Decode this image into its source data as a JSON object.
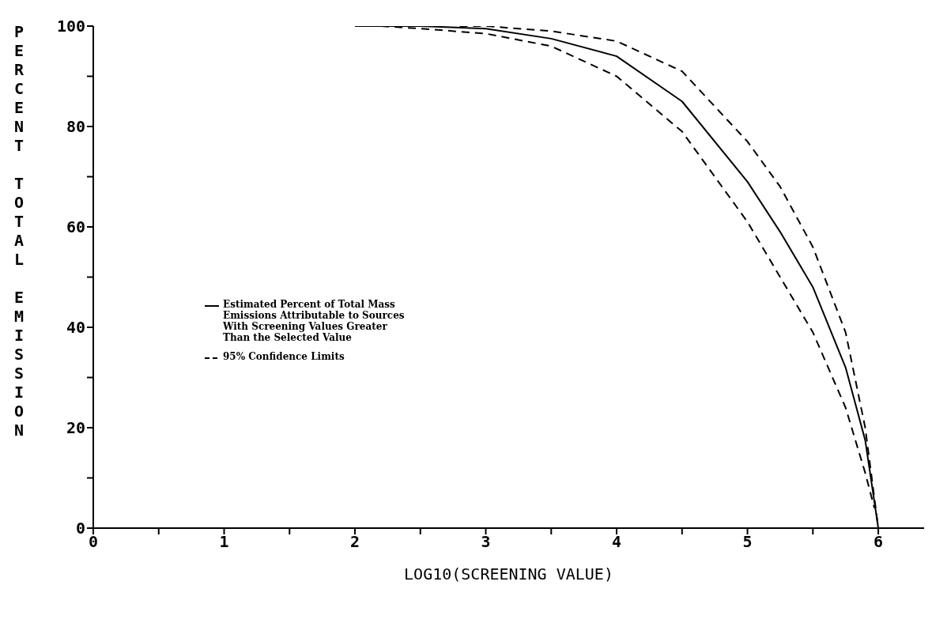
{
  "chart_data": {
    "type": "line",
    "xlabel": "LOG10(SCREENING VALUE)",
    "ylabel": "PERCENT TOTAL EMISSION",
    "xlim": [
      0,
      6.35
    ],
    "xticks": [
      0,
      {
        "value": 0.5,
        "label": null
      },
      1,
      {
        "value": 1.5,
        "label": null
      },
      2,
      {
        "value": 2.5,
        "label": null
      },
      3,
      {
        "value": 3.5,
        "label": null
      },
      4,
      {
        "value": 4.5,
        "label": null
      },
      5,
      {
        "value": 5.5,
        "label": null
      },
      6
    ],
    "ylim": [
      0,
      100
    ],
    "yticks": [
      0,
      {
        "value": 10,
        "label": null
      },
      20,
      {
        "value": 30,
        "label": null
      },
      40,
      {
        "value": 50,
        "label": null
      },
      60,
      {
        "value": 70,
        "label": null
      },
      80,
      {
        "value": 90,
        "label": null
      },
      100
    ],
    "legend": "left",
    "marker": "none",
    "series": [
      {
        "name": "Estimated Percent of Total Mass Emissions Attributable to Sources With Screening Values Greater Than the Selected Value",
        "color": "#000000",
        "line_style": "solid",
        "x": [
          2,
          2.5,
          3,
          3.5,
          4,
          4.5,
          5,
          5.25,
          5.5,
          5.75,
          5.9,
          6
        ],
        "values": [
          100,
          100,
          99.5,
          97.5,
          94,
          85,
          69,
          59,
          48,
          32,
          17.5,
          0
        ]
      },
      {
        "name": "95% Confidence Limits",
        "color": "#000000",
        "line_style": "dashed",
        "x": [
          2.8,
          3,
          3.5,
          4,
          4.5,
          5,
          5.25,
          5.5,
          5.75,
          5.9,
          6
        ],
        "values": [
          100,
          100,
          99,
          97,
          91,
          77,
          68,
          56,
          39,
          20,
          0
        ]
      },
      {
        "color": "#000000",
        "line_style": "dashed",
        "x": [
          2.2,
          2.5,
          3,
          3.5,
          4,
          4.5,
          5,
          5.25,
          5.5,
          5.75,
          5.9,
          5.97
        ],
        "values": [
          100,
          99.5,
          98.5,
          96,
          90,
          79,
          61,
          50,
          39,
          24,
          11,
          4
        ]
      }
    ]
  }
}
